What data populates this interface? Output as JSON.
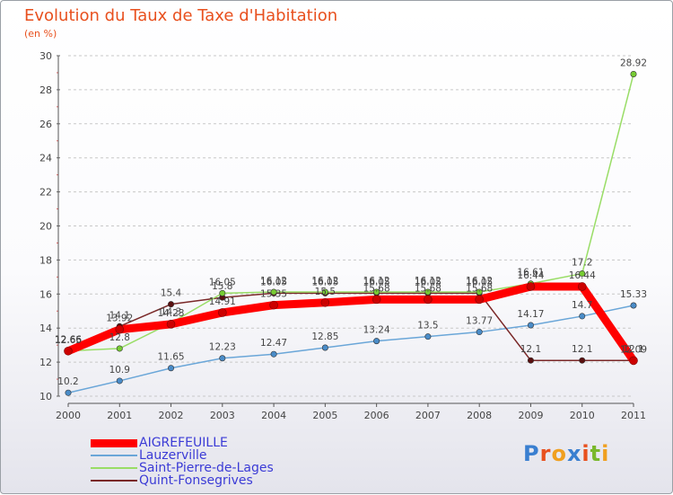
{
  "title": "Evolution du Taux de Taxe d'Habitation",
  "unit": "(en %)",
  "logo": "Proxiti",
  "colors": {
    "title": "#e8501e",
    "legend_text": "#3b3bd6",
    "grid": "#c8c8c8"
  },
  "chart_data": {
    "type": "line",
    "title": "Evolution du Taux de Taxe d'Habitation",
    "ylabel": "(en %)",
    "xlabel": "",
    "categories": [
      "2000",
      "2001",
      "2002",
      "2003",
      "2004",
      "2005",
      "2006",
      "2007",
      "2008",
      "2009",
      "2010",
      "2011"
    ],
    "ylim": [
      10,
      30
    ],
    "yticks": [
      10,
      12,
      14,
      16,
      18,
      20,
      22,
      24,
      26,
      28,
      30
    ],
    "grid": true,
    "legend": "bottom-left",
    "series": [
      {
        "name": "AIGREFEUILLE",
        "color": "#ff0000",
        "marker": "#cc0000",
        "values": [
          12.65,
          13.92,
          14.23,
          14.91,
          15.35,
          15.5,
          15.68,
          15.68,
          15.68,
          16.44,
          16.44,
          12.09
        ]
      },
      {
        "name": "Lauzerville",
        "color": "#6aa6d8",
        "marker": "#4a8cc8",
        "values": [
          10.2,
          10.9,
          11.65,
          12.23,
          12.47,
          12.85,
          13.24,
          13.5,
          13.77,
          14.17,
          14.7,
          15.33
        ]
      },
      {
        "name": "Saint-Pierre-de-Lages",
        "color": "#99dd66",
        "marker": "#77cc33",
        "values": [
          12.66,
          12.8,
          14.3,
          16.05,
          16.12,
          16.12,
          16.12,
          16.12,
          16.12,
          16.61,
          17.2,
          28.92
        ]
      },
      {
        "name": "Quint-Fonsegrives",
        "color": "#7a2828",
        "marker": "#5a1010",
        "values": [
          12.66,
          14.1,
          15.4,
          15.8,
          16.05,
          16.05,
          16.05,
          16.05,
          16.05,
          12.1,
          12.1,
          12.1
        ]
      }
    ],
    "labels": [
      {
        "series": 0,
        "texts": [
          "12.65",
          "13.92",
          "14.23",
          "14.91",
          "15.35",
          "15.5",
          "15.68",
          "15.68",
          "15.68",
          "16.44",
          "16.44",
          "12.09"
        ]
      },
      {
        "series": 1,
        "texts": [
          "10.2",
          "10.9",
          "11.65",
          "12.23",
          "12.47",
          "12.85",
          "13.24",
          "13.5",
          "13.77",
          "14.17",
          "14.7",
          "15.33"
        ]
      },
      {
        "series": 2,
        "texts": [
          "12.66",
          "12.8",
          "14.3",
          "16.05",
          "16.12",
          "16.12",
          "16.12",
          "16.12",
          "16.12",
          "16.61",
          "17.2",
          "28.92"
        ]
      },
      {
        "series": 3,
        "texts": [
          "12.66",
          "14.1",
          "15.4",
          "15.8",
          "16.05",
          "16.05",
          "16.05",
          "16.05",
          "16.05",
          "12.1",
          "12.1",
          "12.1"
        ]
      }
    ]
  }
}
